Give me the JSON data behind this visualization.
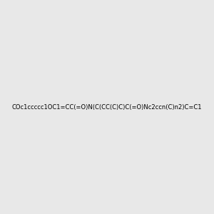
{
  "smiles": "COc1ccccc1OC1=CC(=O)N(C(CC(C)C)C(=O)Nc2ccn(C)n2)C=C1",
  "image_size": 300,
  "background_color": "#e8e8e8",
  "title": ""
}
